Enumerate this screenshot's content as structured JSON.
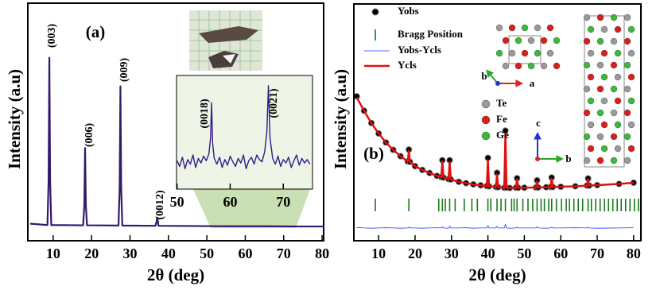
{
  "chart_data": [
    {
      "type": "line",
      "panel_label": "(a)",
      "x_label": "2θ (deg)",
      "y_label": "Intensity (a.u)",
      "peak_labels": [
        "(003)",
        "(006)",
        "(009)",
        "(0012)"
      ],
      "xlim": [
        3.4,
        80.4
      ],
      "ylim": [
        0,
        100
      ],
      "xticks": [
        10,
        20,
        30,
        40,
        50,
        60,
        70,
        80
      ],
      "x": [
        4,
        8.5,
        8.8,
        9.0,
        9.2,
        9.5,
        17.8,
        18.1,
        18.3,
        18.5,
        18.8,
        27,
        27.3,
        27.5,
        27.7,
        28,
        36.6,
        36.9,
        37.1,
        37.4,
        45,
        55,
        65,
        75,
        80.4
      ],
      "series": [
        {
          "color": "#341a6b",
          "values": [
            7.2,
            6.6,
            25,
            77,
            25,
            6.6,
            6.5,
            15,
            39,
            15,
            6.5,
            6.4,
            22,
            65,
            22,
            6.4,
            6.3,
            8,
            9.7,
            6.3,
            6.2,
            6.1,
            6.1,
            6,
            6
          ]
        }
      ]
    },
    {
      "type": "line",
      "peak_labels": [
        "(0018)",
        "(0021)"
      ],
      "xlim": [
        49.9,
        75.5
      ],
      "ylim": [
        0,
        100
      ],
      "xticks": [
        50,
        60,
        70
      ],
      "x": [
        50,
        50.5,
        51,
        51.5,
        52,
        52.5,
        53,
        53.5,
        54,
        54.5,
        55,
        55.5,
        56,
        56.3,
        56.5,
        56.7,
        57,
        57.5,
        58,
        58.5,
        59,
        59.5,
        60,
        60.5,
        61,
        61.5,
        62,
        62.5,
        63,
        63.5,
        64,
        64.5,
        65,
        65.5,
        66,
        66.5,
        66.9,
        67.2,
        67.5,
        68,
        68.5,
        69,
        69.5,
        70,
        70.5,
        71,
        71.5,
        72,
        72.5,
        73,
        73.5,
        74,
        74.5,
        75
      ],
      "series": [
        {
          "color": "#341a8b",
          "values": [
            25,
            20,
            28,
            18,
            26,
            22,
            30,
            19,
            27,
            23,
            29,
            25,
            31,
            45,
            76,
            40,
            27,
            22,
            28,
            19,
            26,
            21,
            29,
            24,
            20,
            27,
            23,
            30,
            18,
            25,
            28,
            22,
            30,
            26,
            24,
            33,
            50,
            91,
            45,
            27,
            22,
            29,
            20,
            26,
            23,
            28,
            19,
            25,
            30,
            21,
            27,
            23,
            26,
            22
          ]
        }
      ]
    },
    {
      "type": "line",
      "panel_label": "(b)",
      "x_label": "2θ (deg)",
      "y_label": "Intensity (a.u)",
      "atom_legend": [
        "Te",
        "Fe",
        "Ge"
      ],
      "axis_labels": [
        "b",
        "a",
        "c",
        "b"
      ],
      "xlim": [
        3.2,
        82
      ],
      "ylim": [
        0,
        100
      ],
      "xticks": [
        10,
        20,
        30,
        40,
        50,
        60,
        70,
        80
      ],
      "x": [
        4,
        6,
        8,
        10,
        12,
        14,
        16,
        18,
        18.3,
        18.6,
        20,
        22,
        24,
        26,
        27.2,
        27.5,
        27.8,
        29.2,
        29.5,
        29.8,
        32,
        34,
        36,
        38,
        39.7,
        40,
        40.3,
        42.2,
        42.5,
        42.8,
        44.5,
        44.8,
        45.1,
        46,
        47.7,
        48,
        48.3,
        50,
        53.2,
        53.5,
        53.8,
        56,
        57.2,
        57.5,
        57.8,
        60,
        64,
        67.2,
        67.5,
        67.8,
        70,
        76,
        80
      ],
      "series": [
        {
          "name": "Yobs",
          "color": "#000000",
          "marker": "circle",
          "values": [
            61,
            54.9,
            49.7,
            45.3,
            41.5,
            38.4,
            35.7,
            33.5,
            38.5,
            33.3,
            31.5,
            29.9,
            28.6,
            27.4,
            26.9,
            34,
            26.7,
            26,
            34,
            25.9,
            24.9,
            24.3,
            23.8,
            23.4,
            23.1,
            35,
            23,
            22.7,
            28.7,
            22.6,
            22.4,
            46.5,
            22.4,
            22.3,
            22.4,
            26.4,
            22.4,
            22.4,
            22.5,
            25.5,
            22.5,
            22.6,
            22.7,
            26.7,
            22.7,
            22.8,
            23,
            23.3,
            26.3,
            23.3,
            23.5,
            24,
            24.5
          ]
        },
        {
          "name": "Bragg Position",
          "color": "#1a7a1a",
          "marker": "tick",
          "x": [
            9.1,
            18.3,
            26.5,
            27.5,
            28.3,
            29.5,
            31,
            33.5,
            35.6,
            37.1,
            40,
            40.8,
            42.5,
            43.6,
            44.8,
            46.5,
            47.2,
            48,
            49.6,
            51,
            52.3,
            53.5,
            54.6,
            55.5,
            56.7,
            57.5,
            58.8,
            60.2,
            61.5,
            62.4,
            63.6,
            64.8,
            66,
            67.5,
            68.4,
            69.6,
            70.8,
            72,
            73.1,
            74.3,
            75.5,
            76.6,
            77.8,
            79,
            80.2,
            81.3
          ]
        },
        {
          "name": "Yobs-Ycls",
          "color": "#1f3cff",
          "width": 0.8,
          "values": [
            5.6,
            5.4,
            5.3,
            5.4,
            5.5,
            5.4,
            5.3,
            5.4,
            5.8,
            5.4,
            5.4,
            5.3,
            5.4,
            5.5,
            5.4,
            5.9,
            5.4,
            5.3,
            6.2,
            5.4,
            5.4,
            5.5,
            5.3,
            5.4,
            5.4,
            6.4,
            5.4,
            5.4,
            6.1,
            5.4,
            5.4,
            6.9,
            5.4,
            5.3,
            5.4,
            5.8,
            5.4,
            5.4,
            5.4,
            5.9,
            5.4,
            5.3,
            5.4,
            5.8,
            5.4,
            5.4,
            5.5,
            5.4,
            5.7,
            5.4,
            5.3,
            5.4,
            5.5
          ]
        },
        {
          "name": "Ycls",
          "color": "#e01010",
          "width": 2.5,
          "values": [
            60.5,
            54.9,
            49.7,
            45.3,
            41.5,
            38.4,
            35.7,
            33.5,
            38,
            33.3,
            31.5,
            29.9,
            28.6,
            27.4,
            26.9,
            33.5,
            26.7,
            26,
            33.2,
            25.9,
            24.9,
            24.3,
            23.8,
            23.4,
            23.1,
            34,
            23,
            22.7,
            28,
            22.6,
            22.4,
            45,
            22.4,
            22.3,
            22.4,
            26,
            22.4,
            22.4,
            22.5,
            25,
            22.5,
            22.6,
            22.7,
            26.3,
            22.7,
            22.8,
            23,
            23.3,
            26,
            23.3,
            23.5,
            24,
            24.5
          ]
        }
      ]
    }
  ]
}
